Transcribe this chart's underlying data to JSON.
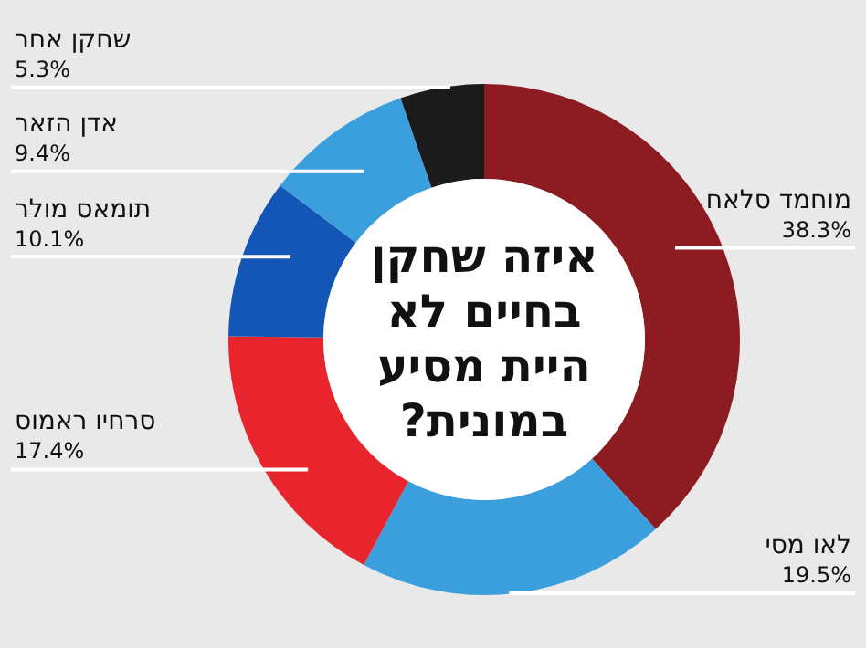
{
  "chart_data": {
    "type": "donut",
    "title": "איזה שחקן בחיים לא היית מסיע במונית?",
    "categories": [
      "מוחמד סלאח",
      "לאו מסי",
      "סרחיו ראמוס",
      "תומאס מולר",
      "אדן הזאר",
      "שחקן אחר"
    ],
    "values": [
      38.3,
      19.5,
      17.4,
      10.1,
      9.4,
      5.3
    ],
    "value_labels": [
      "38.3%",
      "19.5%",
      "17.4%",
      "10.1%",
      "9.4%",
      "5.3%"
    ],
    "colors": [
      "#8c1b22",
      "#3a9fdc",
      "#e8242c",
      "#1456b6",
      "#3a9fdc",
      "#1b1b1b"
    ]
  }
}
